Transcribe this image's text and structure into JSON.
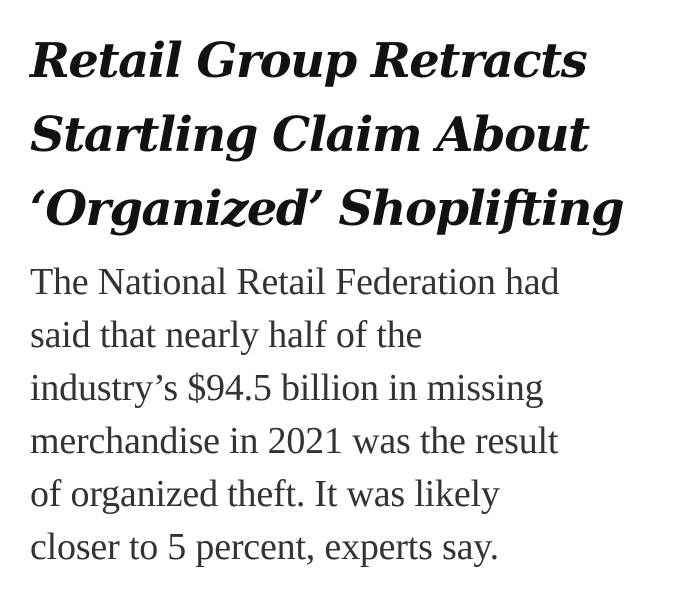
{
  "headline": {
    "lines": [
      "Retail Group Retracts",
      "Startling Claim About",
      "‘Organized’ Shoplifting"
    ]
  },
  "summary": {
    "lines": [
      "The National Retail Federation had",
      "said that nearly half of the",
      "industry’s $94.5 billion in missing",
      "merchandise in 2021 was the result",
      "of organized theft. It was likely",
      "closer to 5 percent, experts say."
    ]
  },
  "colors": {
    "background": "#ffffff",
    "headline_text": "#121212",
    "summary_text": "#333333"
  }
}
